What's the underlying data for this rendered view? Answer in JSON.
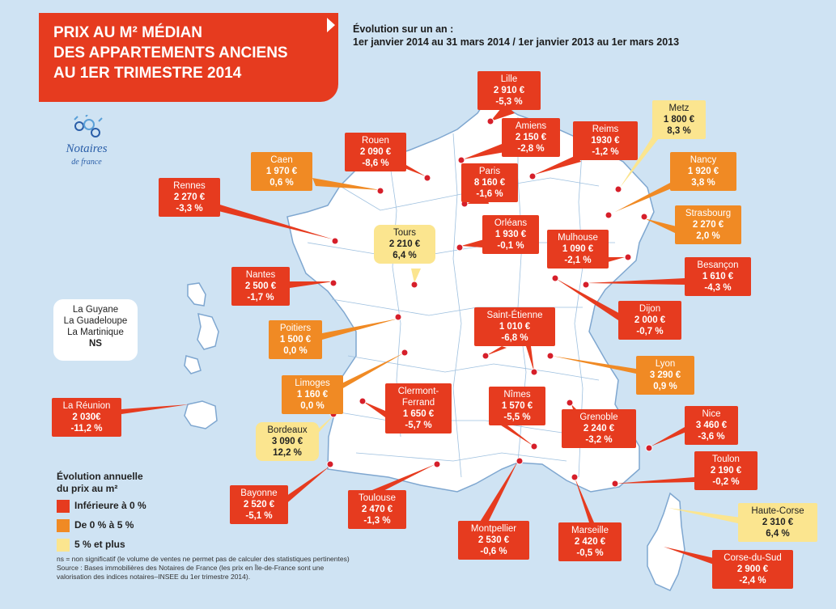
{
  "title": {
    "line1": "PRIX AU M² MÉDIAN",
    "line2": "DES APPARTEMENTS ANCIENS",
    "line3": "AU 1ER TRIMESTRE 2014"
  },
  "evolution_header": {
    "line1": "Évolution sur un an :",
    "line2": "1er janvier 2014 au 31 mars 2014 / 1er janvier 2013 au 1er mars 2013"
  },
  "logo": {
    "name": "Notaires",
    "sub": "de france"
  },
  "overseas_box": {
    "line1": "La Guyane",
    "line2": "La Guadeloupe",
    "line3": "La Martinique",
    "line4": "NS"
  },
  "colors": {
    "red": "#e63b1f",
    "orange": "#f08a24",
    "yellow": "#fbe58f",
    "sea": "#cfe3f3",
    "land": "#ffffff",
    "borders": "#7fa7d0",
    "dot": "#d61f2a"
  },
  "cities": [
    {
      "name": "Lille",
      "price": "2 910 €",
      "change": "-5,3 %",
      "category": "red"
    },
    {
      "name": "Amiens",
      "price": "2 150 €",
      "change": "-2,8 %",
      "category": "red"
    },
    {
      "name": "Reims",
      "price": "1930 €",
      "change": "-1,2 %",
      "category": "red"
    },
    {
      "name": "Metz",
      "price": "1 800 €",
      "change": "8,3 %",
      "category": "yellow"
    },
    {
      "name": "Rouen",
      "price": "2 090 €",
      "change": "-8,6 %",
      "category": "red"
    },
    {
      "name": "Caen",
      "price": "1 970 €",
      "change": "0,6 %",
      "category": "orange"
    },
    {
      "name": "Paris",
      "price": "8 160 €",
      "change": "-1,6 %",
      "category": "red"
    },
    {
      "name": "Nancy",
      "price": "1 920 €",
      "change": "3,8 %",
      "category": "orange"
    },
    {
      "name": "Rennes",
      "price": "2 270 €",
      "change": "-3,3 %",
      "category": "red"
    },
    {
      "name": "Strasbourg",
      "price": "2 270 €",
      "change": "2,0 %",
      "category": "orange"
    },
    {
      "name": "Tours",
      "price": "2 210 €",
      "change": "6,4 %",
      "category": "yellow"
    },
    {
      "name": "Orléans",
      "price": "1 930 €",
      "change": "-0,1 %",
      "category": "red"
    },
    {
      "name": "Mulhouse",
      "price": "1 090 €",
      "change": "-2,1 %",
      "category": "red"
    },
    {
      "name": "Nantes",
      "price": "2 500 €",
      "change": "-1,7 %",
      "category": "red"
    },
    {
      "name": "Besançon",
      "price": "1 610 €",
      "change": "-4,3 %",
      "category": "red"
    },
    {
      "name": "Dijon",
      "price": "2 000 €",
      "change": "-0,7 %",
      "category": "red"
    },
    {
      "name": "Saint-Étienne",
      "price": "1 010 €",
      "change": "-6,8 %",
      "category": "red"
    },
    {
      "name": "Poitiers",
      "price": "1 500 €",
      "change": "0,0 %",
      "category": "orange"
    },
    {
      "name": "Lyon",
      "price": "3 290 €",
      "change": "0,9 %",
      "category": "orange"
    },
    {
      "name": "Limoges",
      "price": "1 160 €",
      "change": "0,0 %",
      "category": "orange"
    },
    {
      "name": "Clermont-\nFerrand",
      "price": "1 650 €",
      "change": "-5,7 %",
      "category": "red"
    },
    {
      "name": "Nîmes",
      "price": "1 570 €",
      "change": "-5,5 %",
      "category": "red"
    },
    {
      "name": "La Réunion",
      "price": "2 030€",
      "change": "-11,2 %",
      "category": "red"
    },
    {
      "name": "Grenoble",
      "price": "2 240 €",
      "change": "-3,2 %",
      "category": "red"
    },
    {
      "name": "Nice",
      "price": "3 460 €",
      "change": "-3,6 %",
      "category": "red"
    },
    {
      "name": "Bordeaux",
      "price": "3 090 €",
      "change": "12,2 %",
      "category": "yellow"
    },
    {
      "name": "Toulon",
      "price": "2 190 €",
      "change": "-0,2 %",
      "category": "red"
    },
    {
      "name": "Bayonne",
      "price": "2 520 €",
      "change": "-5,1 %",
      "category": "red"
    },
    {
      "name": "Toulouse",
      "price": "2 470 €",
      "change": "-1,3 %",
      "category": "red"
    },
    {
      "name": "Montpellier",
      "price": "2 530 €",
      "change": "-0,6 %",
      "category": "red"
    },
    {
      "name": "Marseille",
      "price": "2 420 €",
      "change": "-0,5 %",
      "category": "red"
    },
    {
      "name": "Haute-Corse",
      "price": "2 310 €",
      "change": "6,4 %",
      "category": "yellow"
    },
    {
      "name": "Corse-du-Sud",
      "price": "2 900 €",
      "change": "-2,4 %",
      "category": "red"
    }
  ],
  "legend": {
    "title_line1": "Évolution annuelle",
    "title_line2": "du prix au m²",
    "items": [
      {
        "label": "Inférieure à 0 %",
        "category": "red"
      },
      {
        "label": "De 0 % à 5 %",
        "category": "orange"
      },
      {
        "label": "5 % et plus",
        "category": "yellow"
      }
    ]
  },
  "footnotes": {
    "line1": "ns = non significatif (le volume de ventes ne permet pas de calculer des statistiques pertinentes)",
    "line2": "Source : Bases immobilières des Notaires de France (les prix en Île-de-France sont une",
    "line3": "valorisation des indices notaires–INSEE du 1er trimestre 2014)."
  }
}
